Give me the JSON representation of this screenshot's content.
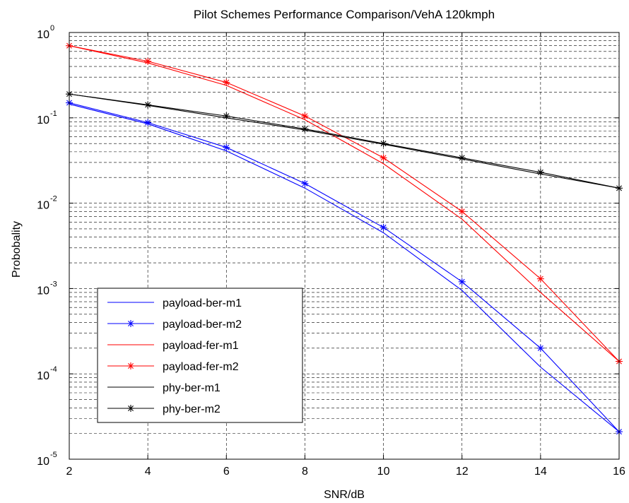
{
  "chart_data": {
    "type": "line",
    "title": "Pilot Schemes Performance Comparison/VehA 120kmph",
    "xlabel": "SNR/dB",
    "ylabel": "Probobality",
    "x_scale": "linear",
    "y_scale": "log",
    "xlim": [
      2,
      16
    ],
    "ylim": [
      1e-05,
      1
    ],
    "x_ticks": [
      2,
      4,
      6,
      8,
      10,
      12,
      14,
      16
    ],
    "x_tick_labels": [
      "2",
      "4",
      "6",
      "8",
      "10",
      "12",
      "14",
      "16"
    ],
    "y_ticks": [
      {
        "value": 1e-05,
        "base": "10",
        "exp": "-5"
      },
      {
        "value": 0.0001,
        "base": "10",
        "exp": "-4"
      },
      {
        "value": 0.001,
        "base": "10",
        "exp": "-3"
      },
      {
        "value": 0.01,
        "base": "10",
        "exp": "-2"
      },
      {
        "value": 0.1,
        "base": "10",
        "exp": "-1"
      },
      {
        "value": 1,
        "base": "10",
        "exp": "0"
      }
    ],
    "grid": true,
    "legend_position": "bottom-left",
    "x": [
      2,
      4,
      6,
      8,
      10,
      12,
      14,
      16
    ],
    "series": [
      {
        "name": "payload-ber-m1",
        "color": "#0000ff",
        "marker": "none",
        "values": [
          0.145,
          0.085,
          0.041,
          0.015,
          0.0045,
          0.00095,
          0.00012,
          2.1e-05
        ]
      },
      {
        "name": "payload-ber-m2",
        "color": "#0000ff",
        "marker": "star",
        "values": [
          0.15,
          0.088,
          0.045,
          0.017,
          0.0052,
          0.0012,
          0.0002,
          2.1e-05
        ]
      },
      {
        "name": "payload-fer-m1",
        "color": "#ff0000",
        "marker": "none",
        "values": [
          0.7,
          0.44,
          0.24,
          0.095,
          0.029,
          0.0065,
          0.0009,
          0.00014
        ]
      },
      {
        "name": "payload-fer-m2",
        "color": "#ff0000",
        "marker": "star",
        "values": [
          0.7,
          0.46,
          0.26,
          0.105,
          0.034,
          0.008,
          0.0013,
          0.00014
        ]
      },
      {
        "name": "phy-ber-m1",
        "color": "#000000",
        "marker": "none",
        "values": [
          0.19,
          0.14,
          0.1,
          0.072,
          0.049,
          0.033,
          0.022,
          0.015
        ]
      },
      {
        "name": "phy-ber-m2",
        "color": "#000000",
        "marker": "star",
        "values": [
          0.19,
          0.142,
          0.105,
          0.074,
          0.05,
          0.034,
          0.023,
          0.015
        ]
      }
    ]
  }
}
